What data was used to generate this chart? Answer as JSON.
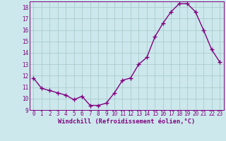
{
  "x": [
    0,
    1,
    2,
    3,
    4,
    5,
    6,
    7,
    8,
    9,
    10,
    11,
    12,
    13,
    14,
    15,
    16,
    17,
    18,
    19,
    20,
    21,
    22,
    23
  ],
  "y": [
    11.8,
    10.9,
    10.7,
    10.5,
    10.3,
    9.9,
    10.2,
    9.4,
    9.4,
    9.6,
    10.5,
    11.6,
    11.8,
    13.0,
    13.6,
    15.4,
    16.6,
    17.6,
    18.3,
    18.3,
    17.6,
    16.0,
    14.3,
    13.2
  ],
  "line_color": "#800080",
  "marker": "+",
  "marker_size": 4,
  "marker_lw": 1.0,
  "bg_color": "#cce8ec",
  "grid_color": "#aacccc",
  "xlabel": "Windchill (Refroidissement éolien,°C)",
  "xlabel_color": "#800080",
  "tick_color": "#800080",
  "ylim": [
    9,
    18.5
  ],
  "xlim": [
    -0.5,
    23.5
  ],
  "yticks": [
    9,
    10,
    11,
    12,
    13,
    14,
    15,
    16,
    17,
    18
  ],
  "xticks": [
    0,
    1,
    2,
    3,
    4,
    5,
    6,
    7,
    8,
    9,
    10,
    11,
    12,
    13,
    14,
    15,
    16,
    17,
    18,
    19,
    20,
    21,
    22,
    23
  ],
  "tick_fontsize": 5.5,
  "xlabel_fontsize": 6.2,
  "linewidth": 1.0
}
